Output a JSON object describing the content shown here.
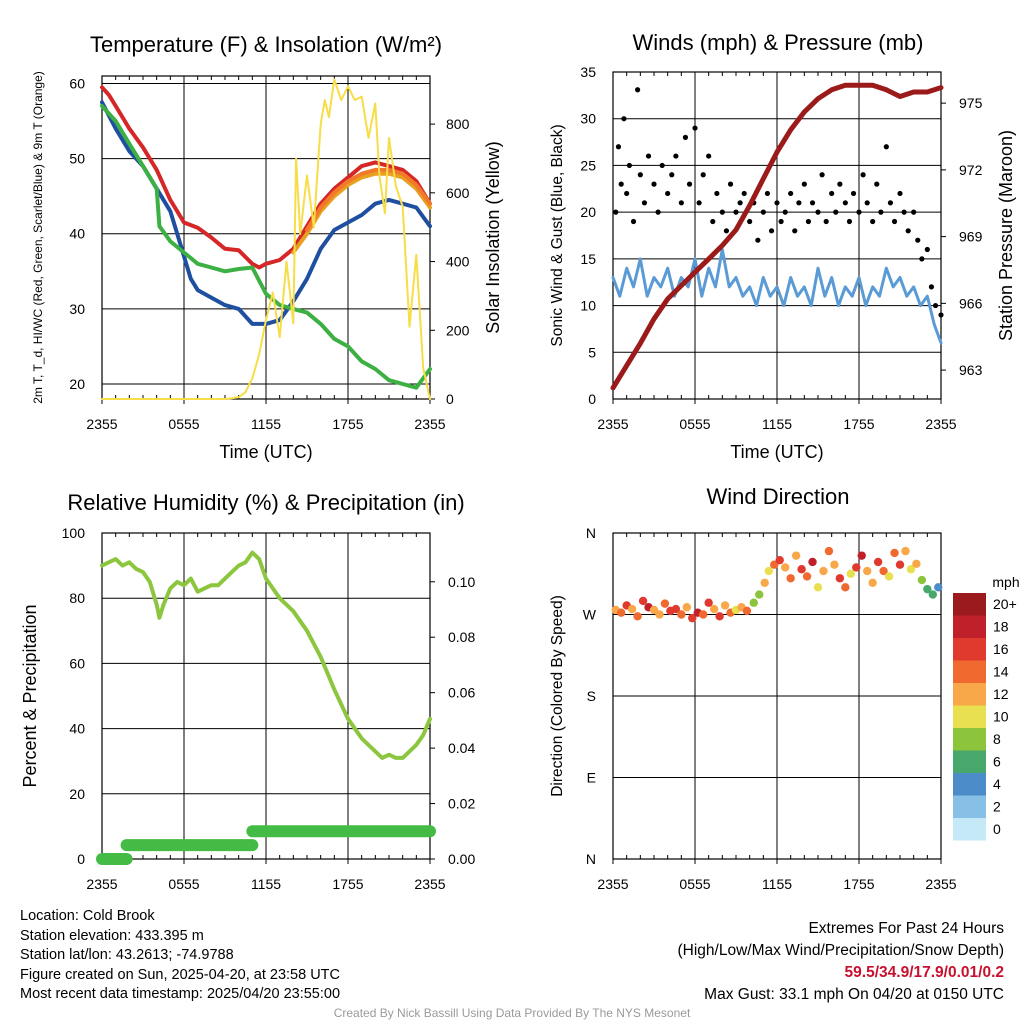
{
  "colors": {
    "temp": "#d62728",
    "heat_index": "#e8a020",
    "wind_chill": "#1f4fa0",
    "nine_m_temp": "#f2782a",
    "dewpoint": "#3cb043",
    "insolation": "#f7dd47",
    "wind": "#5b9bd5",
    "gust": "#000000",
    "pressure": "#9b1b1b",
    "rh": "#8cc63f",
    "precip": "#44bb44"
  },
  "chart_data": [
    {
      "id": "temperature",
      "type": "line",
      "title": "Temperature (F) & Insolation (W/m²)",
      "xlabel": "Time (UTC)",
      "ylabel_left": "2m T, T_d, HI/WC (Red, Green, Scarlet/Blue) & 9m T (Orange)",
      "ylabel_right": "Solar Insolation (Yellow)",
      "xlim_hours": [
        0,
        24
      ],
      "x_ticks": [
        "2355",
        "0555",
        "1155",
        "1755",
        "2355"
      ],
      "ylim_left": [
        18,
        61
      ],
      "y_ticks_left": [
        20,
        30,
        40,
        50,
        60
      ],
      "ylim_right": [
        0,
        940
      ],
      "y_ticks_right": [
        0,
        200,
        400,
        600,
        800
      ],
      "series": [
        {
          "key": "temp",
          "color_key": "temp",
          "axis": "left",
          "x": [
            0,
            0.5,
            1,
            2,
            3,
            4,
            5,
            6,
            7,
            8,
            9,
            10,
            11,
            11.5,
            12,
            13,
            14,
            15,
            16,
            17,
            18,
            19,
            20,
            21,
            22,
            23,
            24
          ],
          "y": [
            59.5,
            58.5,
            57,
            54,
            51.5,
            48.5,
            44.5,
            41.5,
            40.8,
            39.5,
            38,
            37.8,
            36,
            35.5,
            36,
            36.5,
            38,
            41,
            44,
            46,
            47.5,
            49,
            49.5,
            49,
            48.5,
            47,
            44
          ]
        },
        {
          "key": "heat_index",
          "color_key": "heat_index",
          "axis": "left",
          "x": [
            14,
            15,
            16,
            17,
            18,
            19,
            20,
            21,
            22,
            23,
            24
          ],
          "y": [
            37.5,
            40,
            43,
            45,
            46.5,
            47.5,
            48,
            48,
            47.5,
            46,
            43.5
          ]
        },
        {
          "key": "nine_m_temp",
          "color_key": "nine_m_temp",
          "axis": "left",
          "x": [
            15,
            16,
            17,
            18,
            19,
            20,
            21,
            22,
            23,
            24
          ],
          "y": [
            40.5,
            43.5,
            45.5,
            47,
            48,
            48.5,
            48.5,
            48,
            46.5,
            44
          ]
        },
        {
          "key": "wind_chill",
          "color_key": "wind_chill",
          "axis": "left",
          "x": [
            0,
            1,
            2,
            3,
            4,
            5,
            5.5,
            6,
            6.5,
            7,
            8,
            9,
            10,
            11,
            12,
            13,
            14,
            15,
            16,
            17,
            18,
            19,
            20,
            21,
            22,
            23,
            24
          ],
          "y": [
            57.5,
            54,
            51,
            49,
            46,
            43,
            40,
            37,
            34,
            32.5,
            31.5,
            30.5,
            30,
            28,
            28,
            28.5,
            31,
            34,
            38,
            40.5,
            41.5,
            42.5,
            44,
            44.5,
            44,
            43.5,
            41
          ]
        },
        {
          "key": "dewpoint",
          "color_key": "dewpoint",
          "axis": "left",
          "x": [
            0,
            1,
            2,
            3,
            4,
            4.2,
            5,
            6,
            7,
            8,
            9,
            10,
            11,
            12,
            13,
            14,
            15,
            16,
            17,
            18,
            19,
            20,
            21,
            22,
            23,
            24
          ],
          "y": [
            57,
            55,
            52,
            49,
            46,
            41,
            39,
            37.5,
            36,
            35.5,
            35,
            35.3,
            35.5,
            32,
            30.5,
            30,
            29.5,
            28,
            26,
            25,
            23,
            22,
            20.5,
            20,
            19.5,
            22
          ]
        },
        {
          "key": "insolation",
          "color_key": "insolation",
          "axis": "right",
          "x": [
            0,
            8.5,
            9,
            9.5,
            10,
            10.5,
            11,
            11.5,
            12,
            12.5,
            13,
            13.5,
            14,
            14.2,
            14.5,
            15,
            15.5,
            16,
            16.3,
            16.6,
            17,
            17.5,
            18,
            18.5,
            19,
            19.5,
            20,
            20.3,
            20.7,
            21,
            21.5,
            22,
            22.5,
            23,
            23.5,
            24
          ],
          "y": [
            0,
            0,
            0,
            2,
            5,
            20,
            60,
            130,
            230,
            310,
            180,
            400,
            220,
            700,
            480,
            650,
            500,
            800,
            870,
            820,
            930,
            870,
            910,
            870,
            880,
            760,
            860,
            650,
            540,
            760,
            620,
            560,
            210,
            420,
            90,
            0
          ]
        }
      ]
    },
    {
      "id": "winds",
      "type": "line",
      "title": "Winds (mph) & Pressure (mb)",
      "xlabel": "Time (UTC)",
      "ylabel_left": "Sonic Wind & Gust (Blue, Black)",
      "ylabel_right": "Station Pressure (Maroon)",
      "xlim_hours": [
        0,
        24
      ],
      "x_ticks": [
        "2355",
        "0555",
        "1155",
        "1755",
        "2355"
      ],
      "ylim_left": [
        0,
        35
      ],
      "y_ticks_left": [
        0,
        5,
        10,
        15,
        20,
        25,
        30,
        35
      ],
      "ylim_right": [
        961.7,
        976.4
      ],
      "y_ticks_right": [
        963,
        966,
        969,
        972,
        975
      ],
      "series": [
        {
          "key": "wind",
          "color_key": "wind",
          "axis": "left",
          "x": [
            0,
            0.5,
            1,
            1.5,
            2,
            2.5,
            3,
            3.5,
            4,
            4.5,
            5,
            5.5,
            6,
            6.5,
            7,
            7.5,
            8,
            8.5,
            9,
            9.5,
            10,
            10.5,
            11,
            11.5,
            12,
            12.5,
            13,
            13.5,
            14,
            14.5,
            15,
            15.5,
            16,
            16.5,
            17,
            17.5,
            18,
            18.5,
            19,
            19.5,
            20,
            20.5,
            21,
            21.5,
            22,
            22.5,
            23,
            23.5,
            24
          ],
          "y": [
            13,
            11,
            14,
            12,
            15,
            11,
            13,
            12,
            14,
            11,
            13,
            12,
            15,
            11,
            14,
            12,
            16,
            12,
            13,
            11,
            12,
            10,
            13,
            11,
            12,
            10,
            13,
            11,
            12,
            10,
            14,
            11,
            13,
            10,
            12,
            11,
            13,
            10,
            12,
            11,
            14,
            12,
            13,
            11,
            12,
            10,
            11,
            8,
            6
          ]
        },
        {
          "key": "gust",
          "color_key": "gust",
          "axis": "left",
          "style": "points",
          "x": [
            0.2,
            0.4,
            0.6,
            0.8,
            1,
            1.2,
            1.5,
            1.8,
            2,
            2.3,
            2.6,
            3,
            3.3,
            3.6,
            4,
            4.3,
            4.6,
            5,
            5.3,
            5.6,
            6,
            6.3,
            6.6,
            7,
            7.3,
            7.6,
            8,
            8.3,
            8.6,
            9,
            9.3,
            9.6,
            10,
            10.3,
            10.6,
            11,
            11.3,
            11.6,
            12,
            12.3,
            12.6,
            13,
            13.3,
            13.6,
            14,
            14.3,
            14.6,
            15,
            15.3,
            15.6,
            16,
            16.3,
            16.6,
            17,
            17.3,
            17.6,
            18,
            18.3,
            18.6,
            19,
            19.3,
            19.6,
            20,
            20.3,
            20.6,
            21,
            21.3,
            21.6,
            22,
            22.3,
            22.6,
            23,
            23.3,
            23.6,
            24
          ],
          "y": [
            20,
            27,
            23,
            30,
            22,
            25,
            19,
            33.1,
            24,
            21,
            26,
            23,
            20,
            25,
            22,
            24,
            26,
            21,
            28,
            23,
            29,
            21,
            24,
            26,
            19,
            22,
            20,
            18,
            23,
            20,
            21,
            22,
            19,
            21,
            17,
            20,
            22,
            18,
            21,
            19,
            20,
            22,
            18,
            21,
            23,
            19,
            21,
            20,
            24,
            19,
            22,
            20,
            23,
            21,
            19,
            22,
            20,
            24,
            21,
            19,
            23,
            20,
            27,
            21,
            19,
            22,
            20,
            18,
            20,
            17,
            15,
            16,
            12,
            10,
            9
          ]
        },
        {
          "key": "pressure",
          "color_key": "pressure",
          "axis": "right",
          "x": [
            0,
            1,
            2,
            3,
            4,
            5,
            6,
            7,
            8,
            9,
            10,
            11,
            12,
            13,
            14,
            15,
            16,
            17,
            18,
            19,
            20,
            21,
            22,
            23,
            24
          ],
          "y": [
            962.2,
            963.2,
            964.2,
            965.3,
            966.2,
            966.8,
            967.4,
            968.0,
            968.6,
            969.3,
            970.4,
            971.6,
            972.8,
            973.8,
            974.6,
            975.2,
            975.6,
            975.8,
            975.8,
            975.8,
            975.6,
            975.3,
            975.5,
            975.5,
            975.7
          ]
        }
      ]
    },
    {
      "id": "humidity",
      "type": "line",
      "title": "Relative Humidity (%) & Precipitation (in)",
      "ylabel_left": "Percent & Precipitation",
      "xlim_hours": [
        0,
        24
      ],
      "x_ticks": [
        "2355",
        "0555",
        "1155",
        "1755",
        "2355"
      ],
      "ylim_left": [
        0,
        100
      ],
      "y_ticks_left": [
        0,
        20,
        40,
        60,
        80,
        100
      ],
      "ylim_right": [
        0,
        0.1176
      ],
      "y_ticks_right": [
        "0.00",
        "0.02",
        "0.04",
        "0.06",
        "0.08",
        "0.10"
      ],
      "series": [
        {
          "key": "rh",
          "color_key": "rh",
          "axis": "left",
          "x": [
            0,
            0.5,
            1,
            1.5,
            2,
            2.5,
            3,
            3.5,
            4,
            4.2,
            4.5,
            5,
            5.5,
            6,
            6.5,
            7,
            7.5,
            8,
            8.5,
            9,
            9.5,
            10,
            10.5,
            11,
            11.5,
            12,
            12.5,
            13,
            14,
            15,
            16,
            17,
            18,
            19,
            20,
            20.5,
            21,
            21.5,
            22,
            22.5,
            23,
            23.5,
            24
          ],
          "y": [
            90,
            91,
            92,
            90,
            91,
            89,
            88,
            85,
            78,
            74,
            78,
            83,
            85,
            84,
            86,
            82,
            83,
            84,
            84,
            86,
            88,
            90,
            91,
            94,
            92,
            86,
            83,
            80,
            76,
            70,
            62,
            52,
            43,
            37,
            33,
            31,
            32,
            31,
            31,
            33,
            35,
            38,
            43
          ]
        },
        {
          "key": "precip",
          "color_key": "precip",
          "axis": "right",
          "x": [
            0,
            1.8,
            1.8,
            11,
            11,
            24
          ],
          "y": [
            0,
            0,
            0.005,
            0.005,
            0.01,
            0.01
          ]
        }
      ]
    },
    {
      "id": "direction",
      "type": "scatter",
      "title": "Wind Direction",
      "ylabel_left": "Direction (Colored By Speed)",
      "xlim_hours": [
        0,
        24
      ],
      "x_ticks": [
        "2355",
        "0555",
        "1155",
        "1755",
        "2355"
      ],
      "y_ticks_left": [
        "N",
        "E",
        "S",
        "W",
        "N"
      ],
      "ylim_deg": [
        0,
        360
      ],
      "colorbar_title": "mph",
      "colorbar_labels": [
        "0",
        "2",
        "4",
        "6",
        "8",
        "10",
        "12",
        "14",
        "16",
        "18",
        "20+"
      ],
      "colorbar_colors": [
        "#c6e9f7",
        "#86c0e6",
        "#4c8cc8",
        "#48a86c",
        "#8cc43c",
        "#e8e050",
        "#f8a848",
        "#f06a30",
        "#e03a2e",
        "#c0202a",
        "#9a1a1e"
      ],
      "points": {
        "x": [
          0.2,
          0.6,
          1,
          1.4,
          1.8,
          2.2,
          2.6,
          3,
          3.4,
          3.8,
          4.2,
          4.6,
          5,
          5.4,
          5.8,
          6.2,
          6.6,
          7,
          7.4,
          7.8,
          8.2,
          8.6,
          9,
          9.4,
          9.8,
          10.3,
          10.7,
          11.1,
          11.4,
          11.8,
          12.2,
          12.6,
          13,
          13.4,
          13.8,
          14.2,
          14.6,
          15,
          15.4,
          15.8,
          16.2,
          16.6,
          17,
          17.4,
          17.8,
          18.2,
          18.6,
          19,
          19.4,
          19.8,
          20.2,
          20.6,
          21,
          21.4,
          21.8,
          22.2,
          22.6,
          23,
          23.4,
          23.8
        ],
        "y": [
          275,
          272,
          280,
          276,
          268,
          285,
          278,
          275,
          270,
          282,
          274,
          276,
          270,
          278,
          266,
          272,
          270,
          283,
          276,
          268,
          280,
          272,
          275,
          278,
          274,
          283,
          292,
          305,
          318,
          325,
          330,
          322,
          310,
          335,
          320,
          312,
          328,
          300,
          318,
          340,
          325,
          310,
          300,
          315,
          322,
          335,
          318,
          305,
          328,
          318,
          312,
          338,
          325,
          340,
          320,
          326,
          308,
          298,
          292,
          300
        ],
        "speed": [
          13,
          15,
          17,
          12,
          14,
          16,
          18,
          12,
          13,
          15,
          16,
          17,
          14,
          13,
          16,
          18,
          15,
          17,
          13,
          16,
          12,
          14,
          11,
          13,
          15,
          9,
          8,
          12,
          11,
          15,
          17,
          13,
          14,
          12,
          16,
          14,
          18,
          10,
          13,
          15,
          12,
          16,
          14,
          11,
          17,
          18,
          13,
          12,
          16,
          14,
          10,
          15,
          17,
          12,
          10,
          13,
          8,
          6,
          7,
          4
        ]
      }
    }
  ],
  "footer": {
    "location": "Location: Cold Brook",
    "elevation": "Station elevation: 433.395 m",
    "latlon": "Station lat/lon: 43.2613; -74.9788",
    "created": "Figure created on Sun, 2025-04-20, at 23:58 UTC",
    "recent": "Most recent data timestamp: 2025/04/20 23:55:00",
    "extremes_title": "Extremes For Past 24 Hours",
    "extremes_sub": "(High/Low/Max Wind/Precipitation/Snow Depth)",
    "extremes_values": "59.5/34.9/17.9/0.01/0.2",
    "max_gust": "Max Gust: 33.1 mph On 04/20 at 0150 UTC",
    "credit": "Created By Nick Bassill Using Data Provided By The NYS Mesonet"
  }
}
